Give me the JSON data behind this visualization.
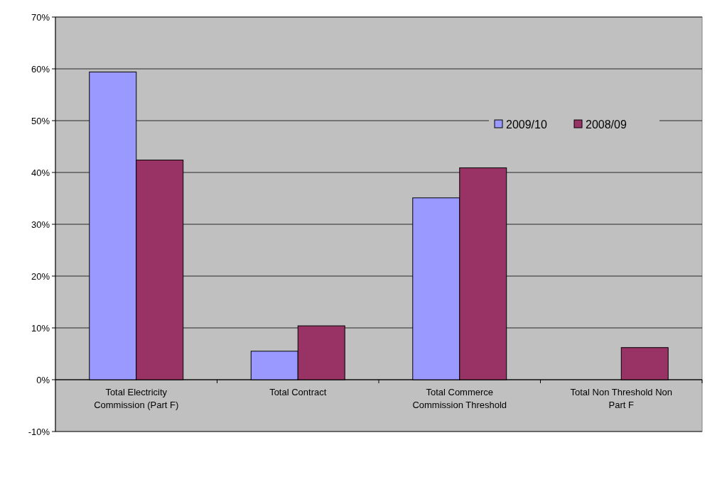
{
  "chart_data": {
    "type": "bar",
    "categories": [
      "Total Electricity Commission (Part F)",
      "Total Contract",
      "Total Commerce Commission Threshold",
      "Total Non Threshold Non Part F"
    ],
    "series": [
      {
        "name": "2009/10",
        "color": "#9999ff",
        "values": [
          59.4,
          5.5,
          35.1,
          null
        ]
      },
      {
        "name": "2008/09",
        "color": "#993366",
        "values": [
          42.4,
          10.4,
          40.9,
          6.2
        ]
      }
    ],
    "ylim": [
      -10,
      70
    ],
    "yticks": [
      {
        "value": -10,
        "label": "-10%"
      },
      {
        "value": 0,
        "label": "0%"
      },
      {
        "value": 10,
        "label": "10%"
      },
      {
        "value": 20,
        "label": "20%"
      },
      {
        "value": 30,
        "label": "30%"
      },
      {
        "value": 40,
        "label": "40%"
      },
      {
        "value": 50,
        "label": "50%"
      },
      {
        "value": 60,
        "label": "60%"
      },
      {
        "value": 70,
        "label": "70%"
      }
    ],
    "grid": "y",
    "legend": "top right"
  }
}
